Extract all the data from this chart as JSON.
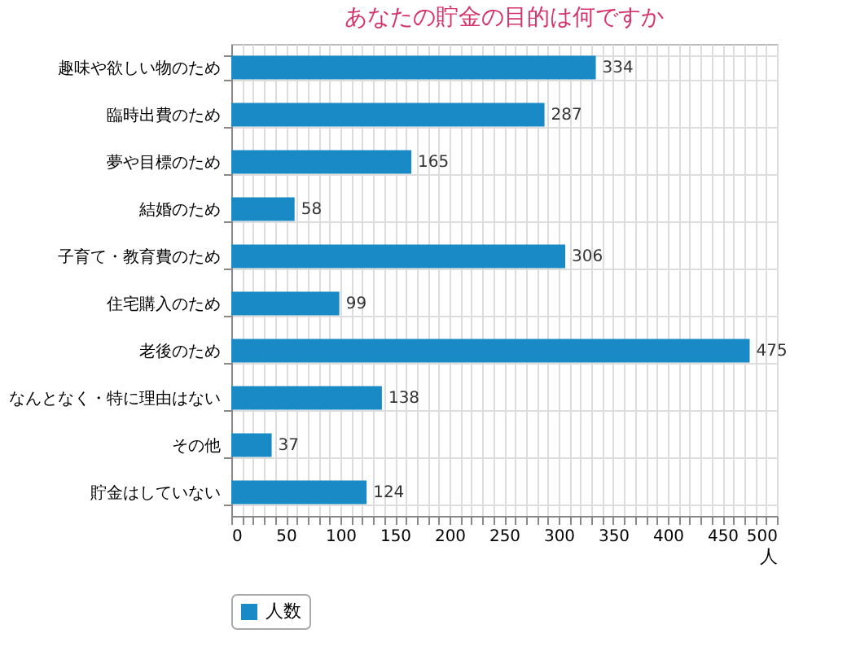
{
  "chart_data": {
    "type": "bar",
    "orientation": "horizontal",
    "title": "あなたの貯金の目的は何ですか",
    "xlabel": "人",
    "categories": [
      "趣味や欲しい物のため",
      "臨時出費のため",
      "夢や目標のため",
      "結婚のため",
      "子育て・教育費のため",
      "住宅購入のため",
      "老後のため",
      "なんとなく・特に理由はない",
      "その他",
      "貯金はしていない"
    ],
    "series": [
      {
        "name": "人数",
        "color": "#1a8ac6",
        "values": [
          334,
          287,
          165,
          58,
          306,
          99,
          475,
          138,
          37,
          124
        ]
      }
    ],
    "xlim": [
      0,
      500
    ],
    "xticks": [
      0,
      {
        "value": 10,
        "label": null
      },
      {
        "value": 20,
        "label": null
      },
      {
        "value": 30,
        "label": null
      },
      {
        "value": 40,
        "label": null
      },
      50,
      {
        "value": 60,
        "label": null
      },
      {
        "value": 70,
        "label": null
      },
      {
        "value": 80,
        "label": null
      },
      {
        "value": 90,
        "label": null
      },
      100,
      {
        "value": 110,
        "label": null
      },
      {
        "value": 120,
        "label": null
      },
      {
        "value": 130,
        "label": null
      },
      {
        "value": 140,
        "label": null
      },
      150,
      {
        "value": 160,
        "label": null
      },
      {
        "value": 170,
        "label": null
      },
      {
        "value": 180,
        "label": null
      },
      {
        "value": 190,
        "label": null
      },
      200,
      {
        "value": 210,
        "label": null
      },
      {
        "value": 220,
        "label": null
      },
      {
        "value": 230,
        "label": null
      },
      {
        "value": 240,
        "label": null
      },
      250,
      {
        "value": 260,
        "label": null
      },
      {
        "value": 270,
        "label": null
      },
      {
        "value": 280,
        "label": null
      },
      {
        "value": 290,
        "label": null
      },
      300,
      {
        "value": 310,
        "label": null
      },
      {
        "value": 320,
        "label": null
      },
      {
        "value": 330,
        "label": null
      },
      {
        "value": 340,
        "label": null
      },
      350,
      {
        "value": 360,
        "label": null
      },
      {
        "value": 370,
        "label": null
      },
      {
        "value": 380,
        "label": null
      },
      {
        "value": 390,
        "label": null
      },
      400,
      {
        "value": 410,
        "label": null
      },
      {
        "value": 420,
        "label": null
      },
      {
        "value": 430,
        "label": null
      },
      {
        "value": 440,
        "label": null
      },
      450,
      {
        "value": 460,
        "label": null
      },
      {
        "value": 470,
        "label": null
      },
      {
        "value": 480,
        "label": null
      },
      {
        "value": 490,
        "label": null
      },
      500
    ],
    "grid": true,
    "data_labels": true,
    "legend": "bottom"
  }
}
